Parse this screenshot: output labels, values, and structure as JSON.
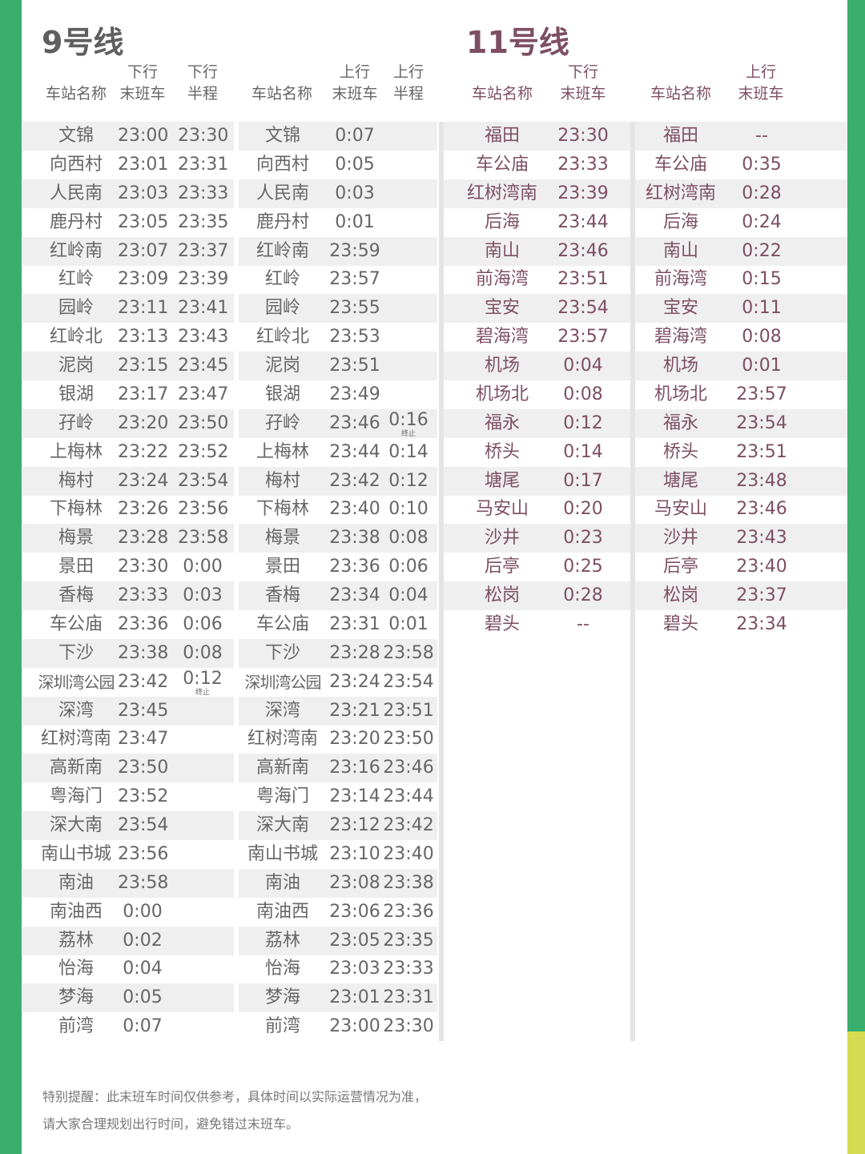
{
  "colors": {
    "green": "#3aae6d",
    "yellow": "#d6dc52",
    "line11": "#7d4f63"
  },
  "line9": {
    "title": "9号线",
    "headers": {
      "station": "车站名称",
      "down_top": "下行",
      "down_last": "末班车",
      "down_half_top": "下行",
      "down_half": "半程",
      "up_top": "上行",
      "up_last": "末班车",
      "up_half_top": "上行",
      "up_half": "半程"
    },
    "terminate_label": "终止",
    "rows": [
      [
        "文锦",
        "23:00",
        "23:30",
        "文锦",
        "0:07",
        ""
      ],
      [
        "向西村",
        "23:01",
        "23:31",
        "向西村",
        "0:05",
        ""
      ],
      [
        "人民南",
        "23:03",
        "23:33",
        "人民南",
        "0:03",
        ""
      ],
      [
        "鹿丹村",
        "23:05",
        "23:35",
        "鹿丹村",
        "0:01",
        ""
      ],
      [
        "红岭南",
        "23:07",
        "23:37",
        "红岭南",
        "23:59",
        ""
      ],
      [
        "红岭",
        "23:09",
        "23:39",
        "红岭",
        "23:57",
        ""
      ],
      [
        "园岭",
        "23:11",
        "23:41",
        "园岭",
        "23:55",
        ""
      ],
      [
        "红岭北",
        "23:13",
        "23:43",
        "红岭北",
        "23:53",
        ""
      ],
      [
        "泥岗",
        "23:15",
        "23:45",
        "泥岗",
        "23:51",
        ""
      ],
      [
        "银湖",
        "23:17",
        "23:47",
        "银湖",
        "23:49",
        ""
      ],
      [
        "孖岭",
        "23:20",
        "23:50",
        "孖岭",
        "23:46",
        "0:16"
      ],
      [
        "上梅林",
        "23:22",
        "23:52",
        "上梅林",
        "23:44",
        "0:14"
      ],
      [
        "梅村",
        "23:24",
        "23:54",
        "梅村",
        "23:42",
        "0:12"
      ],
      [
        "下梅林",
        "23:26",
        "23:56",
        "下梅林",
        "23:40",
        "0:10"
      ],
      [
        "梅景",
        "23:28",
        "23:58",
        "梅景",
        "23:38",
        "0:08"
      ],
      [
        "景田",
        "23:30",
        "0:00",
        "景田",
        "23:36",
        "0:06"
      ],
      [
        "香梅",
        "23:33",
        "0:03",
        "香梅",
        "23:34",
        "0:04"
      ],
      [
        "车公庙",
        "23:36",
        "0:06",
        "车公庙",
        "23:31",
        "0:01"
      ],
      [
        "下沙",
        "23:38",
        "0:08",
        "下沙",
        "23:28",
        "23:58"
      ],
      [
        "深圳湾公园",
        "23:42",
        "0:12",
        "深圳湾公园",
        "23:24",
        "23:54"
      ],
      [
        "深湾",
        "23:45",
        "",
        "深湾",
        "23:21",
        "23:51"
      ],
      [
        "红树湾南",
        "23:47",
        "",
        "红树湾南",
        "23:20",
        "23:50"
      ],
      [
        "高新南",
        "23:50",
        "",
        "高新南",
        "23:16",
        "23:46"
      ],
      [
        "粤海门",
        "23:52",
        "",
        "粤海门",
        "23:14",
        "23:44"
      ],
      [
        "深大南",
        "23:54",
        "",
        "深大南",
        "23:12",
        "23:42"
      ],
      [
        "南山书城",
        "23:56",
        "",
        "南山书城",
        "23:10",
        "23:40"
      ],
      [
        "南油",
        "23:58",
        "",
        "南油",
        "23:08",
        "23:38"
      ],
      [
        "南油西",
        "0:00",
        "",
        "南油西",
        "23:06",
        "23:36"
      ],
      [
        "荔林",
        "0:02",
        "",
        "荔林",
        "23:05",
        "23:35"
      ],
      [
        "怡海",
        "0:04",
        "",
        "怡海",
        "23:03",
        "23:33"
      ],
      [
        "梦海",
        "0:05",
        "",
        "梦海",
        "23:01",
        "23:31"
      ],
      [
        "前湾",
        "0:07",
        "",
        "前湾",
        "23:00",
        "23:30"
      ]
    ]
  },
  "line11": {
    "title": "11号线",
    "headers": {
      "station": "车站名称",
      "down_top": "下行",
      "down_last": "末班车",
      "up_top": "上行",
      "up_last": "末班车"
    },
    "rows": [
      [
        "福田",
        "23:30",
        "福田",
        "--"
      ],
      [
        "车公庙",
        "23:33",
        "车公庙",
        "0:35"
      ],
      [
        "红树湾南",
        "23:39",
        "红树湾南",
        "0:28"
      ],
      [
        "后海",
        "23:44",
        "后海",
        "0:24"
      ],
      [
        "南山",
        "23:46",
        "南山",
        "0:22"
      ],
      [
        "前海湾",
        "23:51",
        "前海湾",
        "0:15"
      ],
      [
        "宝安",
        "23:54",
        "宝安",
        "0:11"
      ],
      [
        "碧海湾",
        "23:57",
        "碧海湾",
        "0:08"
      ],
      [
        "机场",
        "0:04",
        "机场",
        "0:01"
      ],
      [
        "机场北",
        "0:08",
        "机场北",
        "23:57"
      ],
      [
        "福永",
        "0:12",
        "福永",
        "23:54"
      ],
      [
        "桥头",
        "0:14",
        "桥头",
        "23:51"
      ],
      [
        "塘尾",
        "0:17",
        "塘尾",
        "23:48"
      ],
      [
        "马安山",
        "0:20",
        "马安山",
        "23:46"
      ],
      [
        "沙井",
        "0:23",
        "沙井",
        "23:43"
      ],
      [
        "后亭",
        "0:25",
        "后亭",
        "23:40"
      ],
      [
        "松岗",
        "0:28",
        "松岗",
        "23:37"
      ],
      [
        "碧头",
        "--",
        "碧头",
        "23:34"
      ]
    ]
  },
  "notice": [
    "特别提醒：此末班车时间仅供参考，具体时间以实际运营情况为准，",
    "请大家合理规划出行时间，避免错过末班车。"
  ]
}
